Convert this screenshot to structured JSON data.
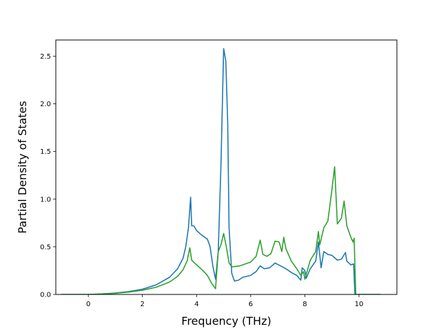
{
  "chart_data": {
    "type": "line",
    "title": "",
    "xlabel": "Frequency (THz)",
    "ylabel": "Partial Density of States",
    "xlim": [
      -1.2,
      11.4
    ],
    "ylim": [
      0.0,
      2.67
    ],
    "xticks": [
      0,
      2,
      4,
      6,
      8,
      10
    ],
    "yticks": [
      0.0,
      0.5,
      1.0,
      1.5,
      2.0,
      2.5
    ],
    "xtick_labels": [
      "0",
      "2",
      "4",
      "6",
      "8",
      "10"
    ],
    "ytick_labels": [
      "0.0",
      "0.5",
      "1.0",
      "1.5",
      "2.0",
      "2.5"
    ],
    "grid": false,
    "legend": "none",
    "series": [
      {
        "color": "#1f77b4",
        "points": [
          [
            -1.0,
            0.0
          ],
          [
            0.0,
            0.0
          ],
          [
            0.5,
            0.005
          ],
          [
            1.0,
            0.015
          ],
          [
            1.5,
            0.03
          ],
          [
            2.0,
            0.055
          ],
          [
            2.5,
            0.1
          ],
          [
            3.0,
            0.18
          ],
          [
            3.3,
            0.27
          ],
          [
            3.5,
            0.38
          ],
          [
            3.6,
            0.5
          ],
          [
            3.7,
            0.7
          ],
          [
            3.78,
            1.02
          ],
          [
            3.82,
            0.72
          ],
          [
            3.9,
            0.72
          ],
          [
            4.0,
            0.67
          ],
          [
            4.2,
            0.62
          ],
          [
            4.4,
            0.58
          ],
          [
            4.5,
            0.5
          ],
          [
            4.6,
            0.3
          ],
          [
            4.7,
            0.16
          ],
          [
            4.8,
            0.45
          ],
          [
            4.9,
            1.35
          ],
          [
            5.0,
            2.58
          ],
          [
            5.08,
            2.45
          ],
          [
            5.15,
            1.8
          ],
          [
            5.2,
            0.7
          ],
          [
            5.3,
            0.22
          ],
          [
            5.4,
            0.14
          ],
          [
            5.55,
            0.15
          ],
          [
            5.7,
            0.18
          ],
          [
            6.0,
            0.2
          ],
          [
            6.2,
            0.24
          ],
          [
            6.35,
            0.3
          ],
          [
            6.5,
            0.27
          ],
          [
            6.7,
            0.28
          ],
          [
            6.9,
            0.33
          ],
          [
            7.1,
            0.3
          ],
          [
            7.3,
            0.27
          ],
          [
            7.5,
            0.23
          ],
          [
            7.7,
            0.2
          ],
          [
            7.85,
            0.15
          ],
          [
            7.9,
            0.28
          ],
          [
            8.0,
            0.25
          ],
          [
            8.05,
            0.17
          ],
          [
            8.2,
            0.27
          ],
          [
            8.4,
            0.35
          ],
          [
            8.5,
            0.55
          ],
          [
            8.6,
            0.28
          ],
          [
            8.7,
            0.45
          ],
          [
            8.85,
            0.42
          ],
          [
            9.0,
            0.41
          ],
          [
            9.2,
            0.36
          ],
          [
            9.35,
            0.37
          ],
          [
            9.5,
            0.44
          ],
          [
            9.55,
            0.35
          ],
          [
            9.7,
            0.31
          ],
          [
            9.8,
            0.32
          ],
          [
            9.85,
            0.0
          ],
          [
            10.8,
            0.0
          ]
        ]
      },
      {
        "color": "#2ca02c",
        "points": [
          [
            -1.0,
            0.0
          ],
          [
            0.0,
            0.0
          ],
          [
            0.5,
            0.005
          ],
          [
            1.0,
            0.012
          ],
          [
            1.5,
            0.025
          ],
          [
            2.0,
            0.045
          ],
          [
            2.5,
            0.075
          ],
          [
            3.0,
            0.13
          ],
          [
            3.3,
            0.19
          ],
          [
            3.5,
            0.26
          ],
          [
            3.65,
            0.35
          ],
          [
            3.75,
            0.49
          ],
          [
            3.82,
            0.36
          ],
          [
            4.0,
            0.31
          ],
          [
            4.2,
            0.26
          ],
          [
            4.4,
            0.2
          ],
          [
            4.55,
            0.12
          ],
          [
            4.7,
            0.06
          ],
          [
            4.8,
            0.45
          ],
          [
            4.9,
            0.52
          ],
          [
            5.0,
            0.64
          ],
          [
            5.1,
            0.5
          ],
          [
            5.2,
            0.33
          ],
          [
            5.3,
            0.29
          ],
          [
            5.6,
            0.3
          ],
          [
            6.0,
            0.34
          ],
          [
            6.2,
            0.4
          ],
          [
            6.35,
            0.57
          ],
          [
            6.45,
            0.42
          ],
          [
            6.6,
            0.4
          ],
          [
            6.75,
            0.43
          ],
          [
            6.9,
            0.56
          ],
          [
            7.05,
            0.55
          ],
          [
            7.15,
            0.45
          ],
          [
            7.22,
            0.6
          ],
          [
            7.3,
            0.48
          ],
          [
            7.5,
            0.35
          ],
          [
            7.7,
            0.27
          ],
          [
            7.85,
            0.2
          ],
          [
            7.95,
            0.24
          ],
          [
            8.0,
            0.16
          ],
          [
            8.2,
            0.36
          ],
          [
            8.4,
            0.45
          ],
          [
            8.5,
            0.66
          ],
          [
            8.55,
            0.52
          ],
          [
            8.7,
            0.7
          ],
          [
            8.85,
            0.77
          ],
          [
            9.0,
            1.1
          ],
          [
            9.1,
            1.34
          ],
          [
            9.2,
            0.74
          ],
          [
            9.35,
            0.8
          ],
          [
            9.45,
            0.98
          ],
          [
            9.55,
            0.72
          ],
          [
            9.7,
            0.6
          ],
          [
            9.78,
            0.55
          ],
          [
            9.82,
            0.59
          ],
          [
            9.88,
            0.0
          ],
          [
            10.8,
            0.0
          ]
        ]
      }
    ]
  }
}
